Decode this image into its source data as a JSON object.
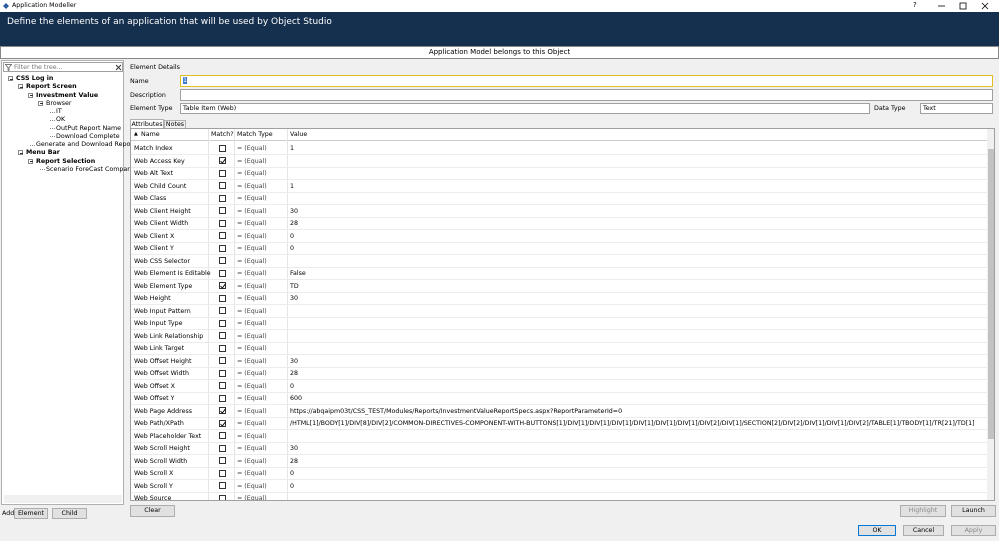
{
  "window": {
    "title": "Application Modeller",
    "help": "?"
  },
  "header": {
    "title": "Define the elements of an application that will be used by Object Studio"
  },
  "banner": "Application Model belongs to this Object",
  "tree": {
    "filter_placeholder": "Filter the tree...",
    "nodes": [
      {
        "label": "CSS Log in",
        "depth": 0
      },
      {
        "label": "Report Screen",
        "depth": 1
      },
      {
        "label": "Investment Value",
        "depth": 2
      },
      {
        "label": "Browser",
        "depth": 3
      },
      {
        "label": "IT",
        "depth": 4
      },
      {
        "label": "OK",
        "depth": 4
      },
      {
        "label": "OutPut Report Name",
        "depth": 4
      },
      {
        "label": "Download Complete",
        "depth": 4
      },
      {
        "label": "Generate and Download Report",
        "depth": 2
      },
      {
        "label": "Menu Bar",
        "depth": 1
      },
      {
        "label": "Report Selection",
        "depth": 2
      },
      {
        "label": "Scenario ForeCast Compariso",
        "depth": 3
      }
    ]
  },
  "add_bar": {
    "label": "Add",
    "element": "Element",
    "child": "Child"
  },
  "details": {
    "title": "Element Details",
    "name_label": "Name",
    "name_value": "1",
    "description_label": "Description",
    "element_type_label": "Element Type",
    "element_type": "Table Item (Web)",
    "data_type_label": "Data Type",
    "data_type": "Text"
  },
  "tabs": [
    "Attributes",
    "Notes"
  ],
  "table": {
    "columns": [
      "Name",
      "Match?",
      "Match Type",
      "Value"
    ],
    "rows": [
      {
        "name": "Match Index",
        "match": false,
        "match_type": "= (Equal)",
        "value": "1"
      },
      {
        "name": "Web Access Key",
        "match": true,
        "match_type": "= (Equal)"
      },
      {
        "name": "Web Alt Text",
        "match": false,
        "match_type": "= (Equal)"
      },
      {
        "name": "Web Child Count",
        "match": false,
        "match_type": "= (Equal)",
        "value": "1"
      },
      {
        "name": "Web Class",
        "match": false,
        "match_type": "= (Equal)"
      },
      {
        "name": "Web Client Height",
        "match": false,
        "match_type": "= (Equal)",
        "value": "30"
      },
      {
        "name": "Web Client Width",
        "match": false,
        "match_type": "= (Equal)",
        "value": "28"
      },
      {
        "name": "Web Client X",
        "match": false,
        "match_type": "= (Equal)",
        "value": "0"
      },
      {
        "name": "Web Client Y",
        "match": false,
        "match_type": "= (Equal)",
        "value": "0"
      },
      {
        "name": "Web CSS Selector",
        "match": false,
        "match_type": "= (Equal)"
      },
      {
        "name": "Web Element Is Editable",
        "match": false,
        "match_type": "= (Equal)",
        "value": "False"
      },
      {
        "name": "Web Element Type",
        "match": true,
        "match_type": "= (Equal)",
        "value": "TD"
      },
      {
        "name": "Web Height",
        "match": false,
        "match_type": "= (Equal)",
        "value": "30"
      },
      {
        "name": "Web Input Pattern",
        "match": false,
        "match_type": "= (Equal)"
      },
      {
        "name": "Web Input Type",
        "match": false,
        "match_type": "= (Equal)"
      },
      {
        "name": "Web Link Relationship",
        "match": false,
        "match_type": "= (Equal)"
      },
      {
        "name": "Web Link Target",
        "match": false,
        "match_type": "= (Equal)"
      },
      {
        "name": "Web Offset Height",
        "match": false,
        "match_type": "= (Equal)",
        "value": "30"
      },
      {
        "name": "Web Offset Width",
        "match": false,
        "match_type": "= (Equal)",
        "value": "28"
      },
      {
        "name": "Web Offset X",
        "match": false,
        "match_type": "= (Equal)",
        "value": "0"
      },
      {
        "name": "Web Offset Y",
        "match": false,
        "match_type": "= (Equal)",
        "value": "600"
      },
      {
        "name": "Web Page Address",
        "match": true,
        "match_type": "= (Equal)",
        "value": "https://abqaipm03t/CSS_TEST/Modules/Reports/InvestmentValueReportSpecs.aspx?ReportParameterId=0"
      },
      {
        "name": "Web Path/XPath",
        "match": true,
        "match_type": "= (Equal)",
        "value": "/HTML[1]/BODY[1]/DIV[8]/DIV[2]/COMMON-DIRECTIVES-COMPONENT-WITH-BUTTONS[1]/DIV[1]/DIV[1]/DIV[1]/DIV[1]/DIV[1]/DIV[1]/DIV[2]/DIV[1]/SECTION[2]/DIV[2]/DIV[1]/DIV[1]/DIV[2]/TABLE[1]/TBODY[1]/TR[21]/TD[1]"
      },
      {
        "name": "Web Placeholder Text",
        "match": false,
        "match_type": "= (Equal)"
      },
      {
        "name": "Web Scroll Height",
        "match": false,
        "match_type": "= (Equal)",
        "value": "30"
      },
      {
        "name": "Web Scroll Width",
        "match": false,
        "match_type": "= (Equal)",
        "value": "28"
      },
      {
        "name": "Web Scroll X",
        "match": false,
        "match_type": "= (Equal)",
        "value": "0"
      },
      {
        "name": "Web Scroll Y",
        "match": false,
        "match_type": "= (Equal)",
        "value": "0"
      },
      {
        "name": "Web Source",
        "match": false,
        "match_type": "= (Equal)"
      }
    ]
  },
  "buttons": {
    "clear": "Clear",
    "highlight": "Highlight",
    "launch": "Launch",
    "ok": "OK",
    "cancel": "Cancel",
    "apply": "Apply"
  }
}
